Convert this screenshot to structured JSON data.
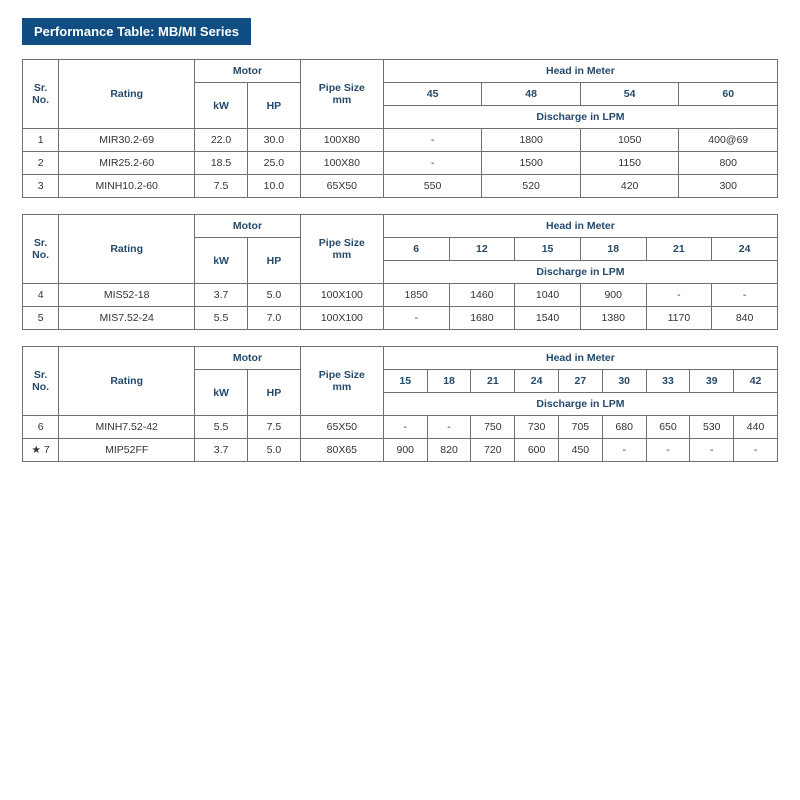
{
  "title": "Performance Table: MB/MI Series",
  "labels": {
    "sr": "Sr.\nNo.",
    "rating": "Rating",
    "motor": "Motor",
    "kw": "kW",
    "hp": "HP",
    "pipe": "Pipe Size\nmm",
    "head": "Head in Meter",
    "disch": "Discharge in LPM"
  },
  "tables": [
    {
      "heads": [
        "45",
        "48",
        "54",
        "60"
      ],
      "rows": [
        {
          "sr": "1",
          "rating": "MIR30.2-69",
          "kw": "22.0",
          "hp": "30.0",
          "pipe": "100X80",
          "d": [
            "-",
            "1800",
            "1050",
            "400@69"
          ]
        },
        {
          "sr": "2",
          "rating": "MIR25.2-60",
          "kw": "18.5",
          "hp": "25.0",
          "pipe": "100X80",
          "d": [
            "-",
            "1500",
            "1150",
            "800"
          ]
        },
        {
          "sr": "3",
          "rating": "MINH10.2-60",
          "kw": "7.5",
          "hp": "10.0",
          "pipe": "65X50",
          "d": [
            "550",
            "520",
            "420",
            "300"
          ]
        }
      ]
    },
    {
      "heads": [
        "6",
        "12",
        "15",
        "18",
        "21",
        "24"
      ],
      "rows": [
        {
          "sr": "4",
          "rating": "MIS52-18",
          "kw": "3.7",
          "hp": "5.0",
          "pipe": "100X100",
          "d": [
            "1850",
            "1460",
            "1040",
            "900",
            "-",
            "-"
          ]
        },
        {
          "sr": "5",
          "rating": "MIS7.52-24",
          "kw": "5.5",
          "hp": "7.0",
          "pipe": "100X100",
          "d": [
            "-",
            "1680",
            "1540",
            "1380",
            "1170",
            "840"
          ]
        }
      ]
    },
    {
      "heads": [
        "15",
        "18",
        "21",
        "24",
        "27",
        "30",
        "33",
        "39",
        "42"
      ],
      "rows": [
        {
          "sr": "6",
          "rating": "MINH7.52-42",
          "kw": "5.5",
          "hp": "7.5",
          "pipe": "65X50",
          "d": [
            "-",
            "-",
            "750",
            "730",
            "705",
            "680",
            "650",
            "530",
            "440"
          ]
        },
        {
          "sr": "★ 7",
          "rating": "MIP52FF",
          "kw": "3.7",
          "hp": "5.0",
          "pipe": "80X65",
          "d": [
            "900",
            "820",
            "720",
            "600",
            "450",
            "-",
            "-",
            "-",
            "-"
          ]
        }
      ]
    }
  ],
  "style": {
    "title_bg": "#0f4d82",
    "title_color": "#ffffff",
    "border_color": "#707070",
    "header_text_color": "#254a6b",
    "data_text_color": "#333333",
    "background": "#ffffff",
    "font_family": "Arial",
    "title_fontsize": 13,
    "cell_fontsize": 10.5
  }
}
